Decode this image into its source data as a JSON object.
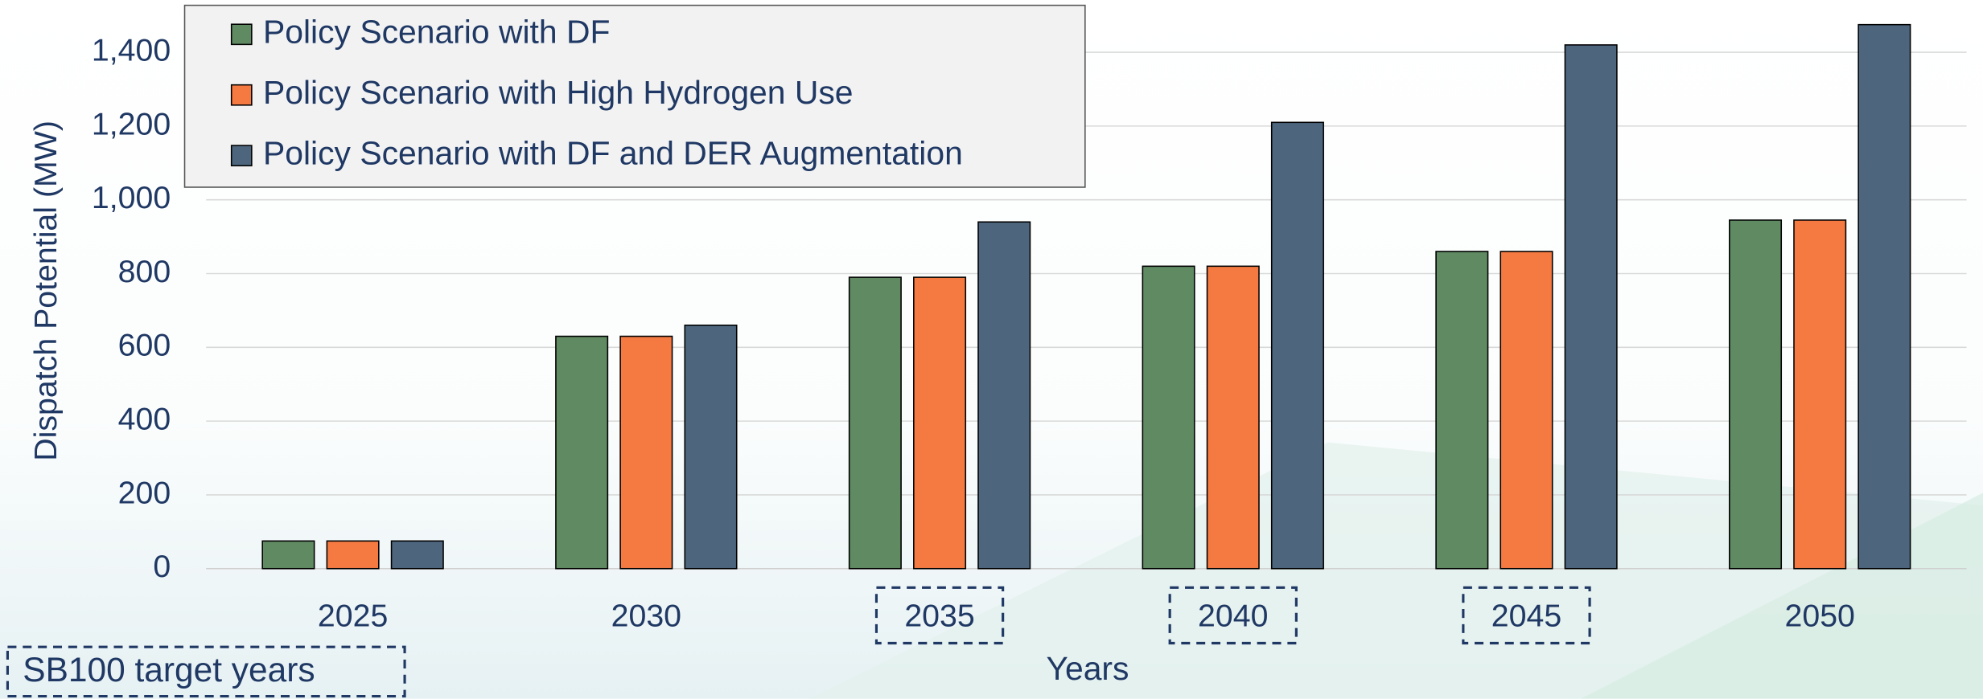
{
  "chart_data": {
    "type": "bar",
    "y_label": "Dispatch Potential (MW)",
    "x_label": "Years",
    "categories": [
      "2025",
      "2030",
      "2035",
      "2040",
      "2045",
      "2050"
    ],
    "series": [
      {
        "name": "Policy Scenario with DF",
        "color": "#5f8a62",
        "values": [
          75,
          630,
          790,
          820,
          860,
          945
        ]
      },
      {
        "name": "Policy Scenario with High Hydrogen Use",
        "color": "#f47a42",
        "values": [
          75,
          630,
          790,
          820,
          860,
          945
        ]
      },
      {
        "name": "Policy Scenario with DF and DER Augmentation",
        "color": "#4d667e",
        "values": [
          75,
          660,
          940,
          1210,
          1420,
          1475
        ]
      }
    ],
    "ylim": [
      0,
      1500
    ],
    "yticks": [
      0,
      200,
      400,
      600,
      800,
      {
        "value": 1000,
        "label": "1,000"
      },
      {
        "value": 1200,
        "label": "1,200"
      },
      {
        "value": 1400,
        "label": "1,400"
      }
    ],
    "grid": true,
    "legend": "top-left",
    "annotation": {
      "text": "SB100 target years",
      "categories": [
        "2035",
        "2040",
        "2045"
      ]
    }
  }
}
